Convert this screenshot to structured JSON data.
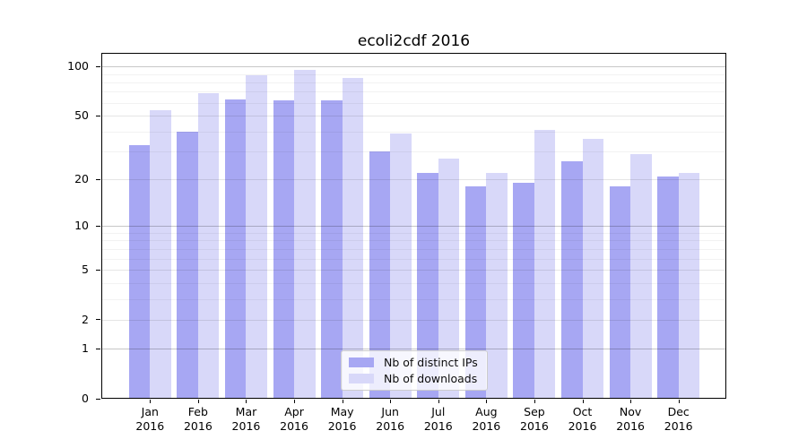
{
  "chart_data": {
    "type": "bar",
    "title": "ecoli2cdf 2016",
    "categories": [
      "Jan",
      "Feb",
      "Mar",
      "Apr",
      "May",
      "Jun",
      "Jul",
      "Aug",
      "Sep",
      "Oct",
      "Nov",
      "Dec"
    ],
    "year_label": "2016",
    "series": [
      {
        "name": "Nb of distinct IPs",
        "color": "#a7a7f3",
        "values": [
          33,
          40,
          63,
          62,
          62,
          30,
          22,
          18,
          19,
          26,
          18,
          21
        ]
      },
      {
        "name": "Nb of downloads",
        "color": "#d8d8f9",
        "values": [
          54,
          69,
          88,
          95,
          85,
          39,
          27,
          22,
          41,
          36,
          29,
          22
        ]
      }
    ],
    "yticks": [
      0,
      1,
      2,
      5,
      10,
      20,
      50,
      100
    ],
    "scale": "log1p",
    "ylim": [
      0,
      121
    ],
    "grid": {
      "decade": [
        1,
        10,
        100
      ],
      "labeled": [
        2,
        5,
        20,
        50
      ],
      "minor": [
        3,
        4,
        6,
        7,
        8,
        9,
        30,
        40,
        60,
        70,
        80,
        90
      ]
    },
    "legend_position": "bottom-center",
    "background_color": "#ffffff"
  }
}
